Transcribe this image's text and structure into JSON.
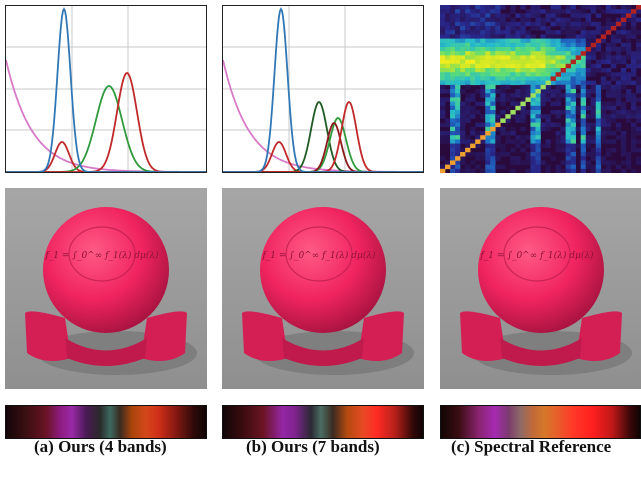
{
  "figure": {
    "columns": [
      {
        "id": "a",
        "caption": "(a) Ours (4 bands)"
      },
      {
        "id": "b",
        "caption": "(b) Ours (7 bands)"
      },
      {
        "id": "c",
        "caption": "(c) Spectral Reference"
      }
    ],
    "equation_text": "f_1 = ∫_0^∞ f_1(λ) dμ(λ)",
    "colors": {
      "blue": "#2f78b5",
      "green": "#2e9b3c",
      "dark_green": "#1f5a22",
      "red": "#c0282a",
      "dark_red": "#8c1a1a",
      "pink": "#d77ac8",
      "sphere": "#f0245f",
      "background": "#9e9e9e"
    }
  }
}
